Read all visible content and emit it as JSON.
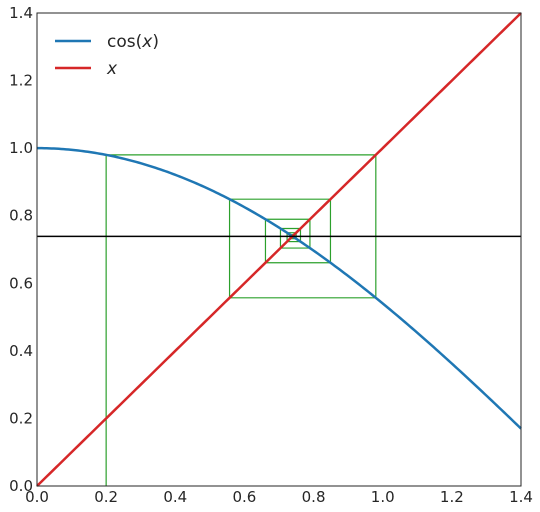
{
  "chart_data": {
    "type": "line",
    "title": "",
    "xlabel": "",
    "ylabel": "",
    "xlim": [
      0.0,
      1.4
    ],
    "ylim": [
      0.0,
      1.4
    ],
    "xticks": [
      0.0,
      0.2,
      0.4,
      0.6,
      0.8,
      1.0,
      1.2,
      1.4
    ],
    "yticks": [
      0.0,
      0.2,
      0.4,
      0.6,
      0.8,
      1.0,
      1.2,
      1.4
    ],
    "x_tick_labels": [
      "0.0",
      "0.2",
      "0.4",
      "0.6",
      "0.8",
      "1.0",
      "1.2",
      "1.4"
    ],
    "y_tick_labels": [
      "0.0",
      "0.2",
      "0.4",
      "0.6",
      "0.8",
      "1.0",
      "1.2",
      "1.4"
    ],
    "grid": false,
    "legend_position": "top-left",
    "series": [
      {
        "name": "cos(x)",
        "legend_prefix": "cos(",
        "legend_var": "x",
        "legend_suffix": ")",
        "color": "#1f77b4",
        "function": "cos",
        "x_range": [
          0.0,
          1.4
        ]
      },
      {
        "name": "x",
        "legend_prefix": "",
        "legend_var": "x",
        "legend_suffix": "",
        "color": "#d62728",
        "function": "identity",
        "x_range": [
          0.0,
          1.4
        ]
      }
    ],
    "horizontal_line": {
      "y": 0.739,
      "color": "#000000"
    },
    "cobweb": {
      "color": "#2ca02c",
      "start_x": 0.2,
      "iterations": 14
    }
  }
}
